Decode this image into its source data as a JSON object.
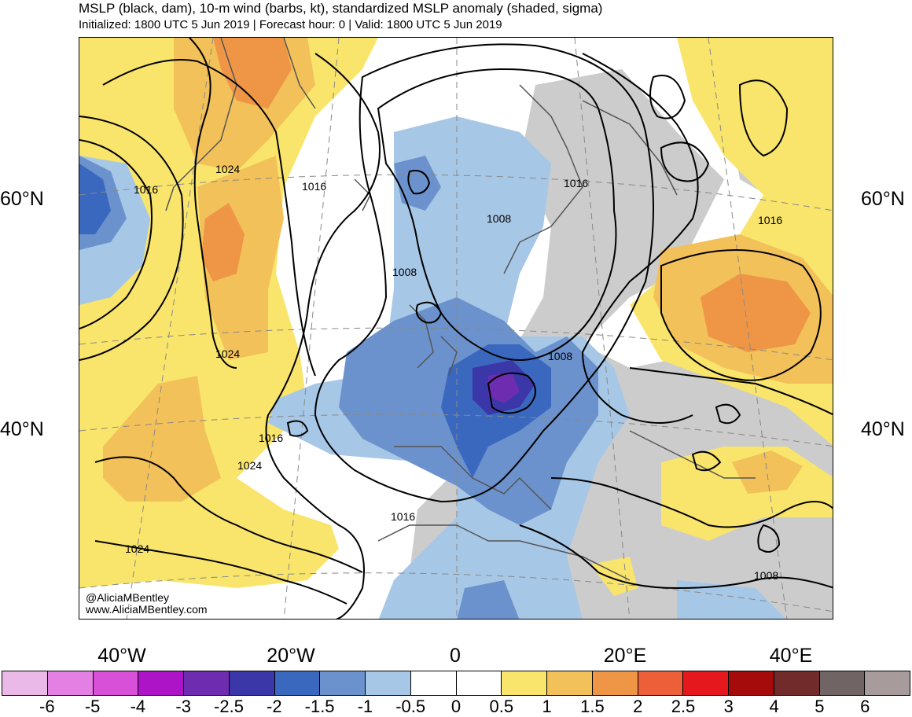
{
  "title": "MSLP (black, dam), 10-m wind (barbs, kt), standardized MSLP anomaly (shaded, sigma)",
  "subtitle": "Initialized: 1800 UTC 5 Jun 2019 | Forecast hour: 0 | Valid: 1800 UTC 5 Jun 2019",
  "lat_labels": {
    "n60_left": "60°N",
    "n40_left": "40°N",
    "n60_right": "60°N",
    "n40_right": "40°N"
  },
  "lon_labels": {
    "w40": "40°W",
    "w20": "20°W",
    "zero": "0",
    "e20": "20°E",
    "e40": "40°E"
  },
  "contour_labels": {
    "l1016a": "1016",
    "l1024a": "1024",
    "l1016b": "1016",
    "l1024b": "1024",
    "l1008a": "1008",
    "l1016c": "1016",
    "l1008b": "1008",
    "l1008c": "1008",
    "l1016d": "1016",
    "l1016e": "1016",
    "l1024c": "1024",
    "l1016f": "1016",
    "l1024d": "1024",
    "l1008d": "1008"
  },
  "credits": {
    "handle": "@AliciaMBentley",
    "website": "www.AliciaMBentley.com"
  },
  "colorbar": {
    "colors": [
      "#ebb9e8",
      "#e47fe4",
      "#d850d8",
      "#ad14c8",
      "#6e2db0",
      "#3c37a8",
      "#3a68bf",
      "#6b92cd",
      "#a7c7e6",
      "#ffffff",
      "#ffffff",
      "#f9e56b",
      "#f2c159",
      "#ee9646",
      "#ed5f38",
      "#e5191d",
      "#a50b0b",
      "#722b2b",
      "#706564",
      "#a89b9b"
    ],
    "ticks": [
      "-6",
      "-5",
      "-4",
      "-3",
      "-2.5",
      "-2",
      "-1.5",
      "-1",
      "-0.5",
      "0",
      "0.5",
      "1",
      "1.5",
      "2",
      "2.5",
      "3",
      "4",
      "5",
      "6"
    ]
  },
  "shading_colors": {
    "land_gray": "#cccccc",
    "coast": "#555555"
  }
}
